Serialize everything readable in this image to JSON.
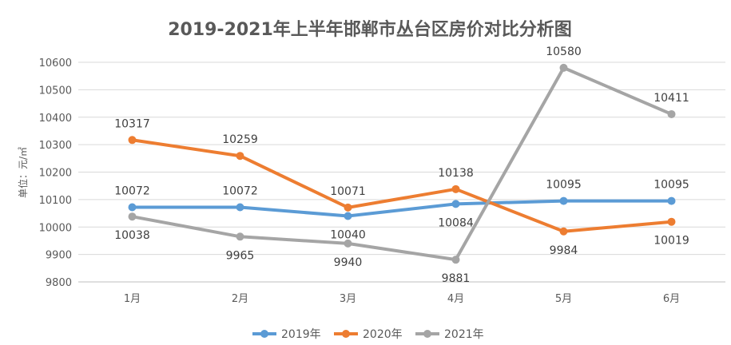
{
  "chart_data": {
    "type": "line",
    "title": "2019-2021年上半年邯郸市丛台区房价对比分析图",
    "ylabel": "单位：元/㎡",
    "xlabel": "",
    "categories": [
      "1月",
      "2月",
      "3月",
      "4月",
      "5月",
      "6月"
    ],
    "ylim": [
      9800,
      10600
    ],
    "yticks": [
      9800,
      9900,
      10000,
      10100,
      10200,
      10300,
      10400,
      10500,
      10600
    ],
    "grid": true,
    "legend_position": "bottom",
    "series": [
      {
        "name": "2019年",
        "color": "#5B9BD5",
        "values": [
          10072,
          10072,
          10040,
          10084,
          10095,
          10095
        ]
      },
      {
        "name": "2020年",
        "color": "#ED7D31",
        "values": [
          10317,
          10259,
          10071,
          10138,
          9984,
          10019
        ]
      },
      {
        "name": "2021年",
        "color": "#A5A5A5",
        "values": [
          10038,
          9965,
          9940,
          9881,
          10580,
          10411
        ]
      }
    ]
  }
}
